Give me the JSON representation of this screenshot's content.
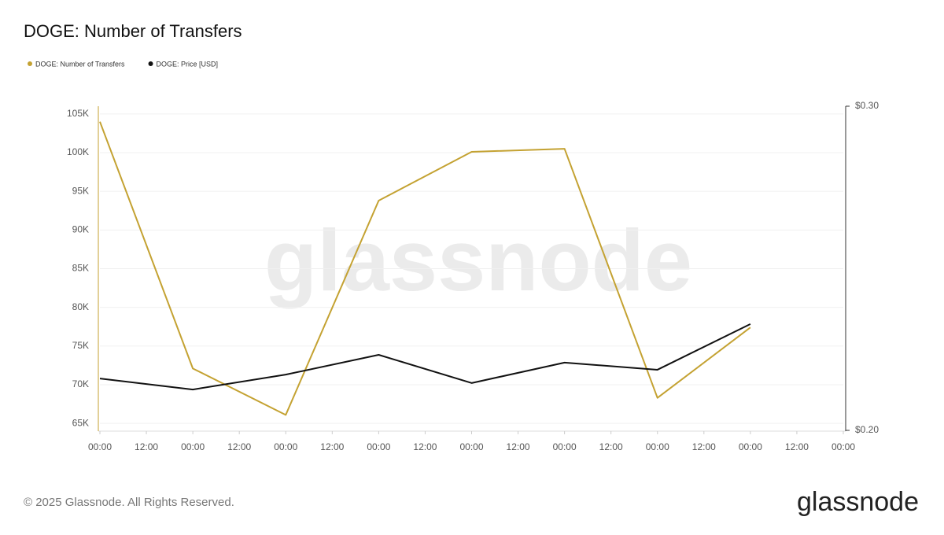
{
  "chart_data": {
    "type": "line",
    "title": "DOGE: Number of Transfers",
    "watermark": "glassnode",
    "x": [
      0,
      1,
      2,
      3,
      4,
      5,
      6,
      7
    ],
    "xlim": [
      0,
      8
    ],
    "xticks": [
      {
        "value": 0,
        "label": "00:00"
      },
      {
        "value": 0.5,
        "label": "12:00"
      },
      {
        "value": 1,
        "label": "00:00"
      },
      {
        "value": 1.5,
        "label": "12:00"
      },
      {
        "value": 2,
        "label": "00:00"
      },
      {
        "value": 2.5,
        "label": "12:00"
      },
      {
        "value": 3,
        "label": "00:00"
      },
      {
        "value": 3.5,
        "label": "12:00"
      },
      {
        "value": 4,
        "label": "00:00"
      },
      {
        "value": 4.5,
        "label": "12:00"
      },
      {
        "value": 5,
        "label": "00:00"
      },
      {
        "value": 5.5,
        "label": "12:00"
      },
      {
        "value": 6,
        "label": "00:00"
      },
      {
        "value": 6.5,
        "label": "12:00"
      },
      {
        "value": 7,
        "label": "00:00"
      },
      {
        "value": 7.5,
        "label": "12:00"
      },
      {
        "value": 8,
        "label": "00:00"
      }
    ],
    "ylim": [
      64100,
      106000
    ],
    "yticks": [
      {
        "value": 65000,
        "label": "65K"
      },
      {
        "value": 70000,
        "label": "70K"
      },
      {
        "value": 75000,
        "label": "75K"
      },
      {
        "value": 80000,
        "label": "80K"
      },
      {
        "value": 85000,
        "label": "85K"
      },
      {
        "value": 90000,
        "label": "90K"
      },
      {
        "value": 95000,
        "label": "95K"
      },
      {
        "value": 100000,
        "label": "100K"
      },
      {
        "value": 105000,
        "label": "105K"
      }
    ],
    "y2lim": [
      0.2,
      0.3
    ],
    "y2ticks": [
      {
        "value": 0.2,
        "label": "$0.20"
      },
      {
        "value": 0.3,
        "label": "$0.30"
      }
    ],
    "grid": true,
    "legend": "top-left",
    "series": [
      {
        "name": "DOGE: Number of Transfers",
        "color": "#c4a232",
        "values": [
          104000,
          72100,
          66100,
          93800,
          100100,
          100500,
          68300,
          77400
        ]
      },
      {
        "name": "DOGE: Price [USD]",
        "color": "#111111",
        "axis": "y2",
        "values": [
          0.216,
          0.2126,
          0.2172,
          0.2233,
          0.2146,
          0.2209,
          0.2187,
          0.2328
        ]
      }
    ]
  },
  "footer": {
    "copyright": "© 2025 Glassnode. All Rights Reserved.",
    "logo": "glassnode"
  }
}
